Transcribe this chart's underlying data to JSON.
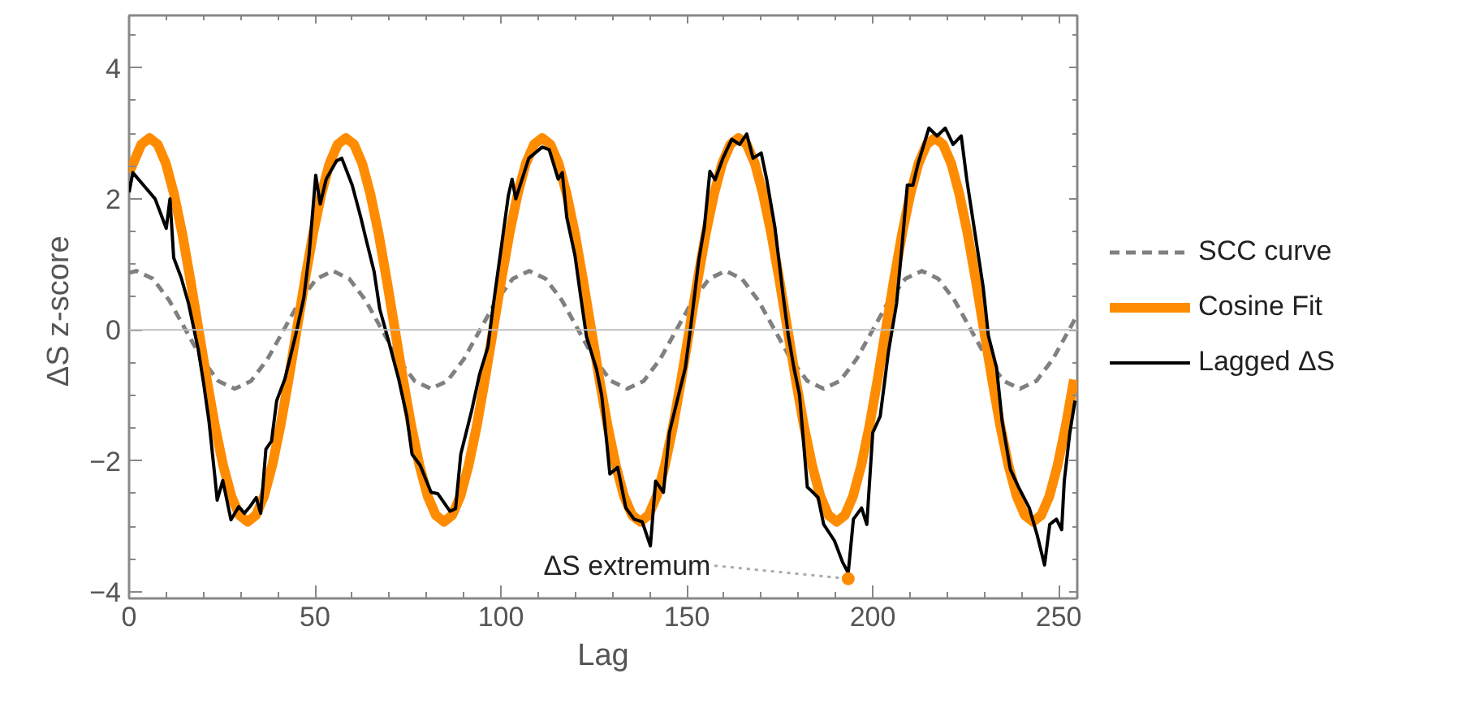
{
  "chart_data": {
    "type": "line",
    "xlabel": "Lag",
    "ylabel": "ΔS  z-score",
    "xlim": [
      0,
      255
    ],
    "ylim": [
      -4.1,
      4.8
    ],
    "xticks": [
      0,
      50,
      100,
      150,
      200,
      250
    ],
    "yticks": [
      -4,
      -2,
      0,
      2,
      4
    ],
    "grid": false,
    "legend": "right",
    "ref_lines": [
      {
        "axis": "y",
        "value": 0,
        "color": "#c0c0c0"
      }
    ],
    "annotations": [
      {
        "text": "ΔS extremum",
        "x": 193.4,
        "y": -3.8
      }
    ],
    "series": [
      {
        "name": "SCC curve",
        "color": "#808080",
        "line_style": "dashed",
        "x": [
          0,
          2,
          6.4,
          10.8,
          15.2,
          19.6,
          24,
          28.4,
          32.8,
          37.2,
          41.6,
          46,
          50.4,
          54.8,
          59.2,
          63.6,
          68,
          72.4,
          76.8,
          81.2,
          85.6,
          90,
          94.4,
          98.8,
          103.2,
          107.6,
          112,
          116.4,
          120.8,
          125.2,
          129.6,
          134,
          138.4,
          142.8,
          147.2,
          151.6,
          156,
          160.4,
          164.8,
          169.2,
          173.6,
          178,
          182.4,
          186.8,
          191.2,
          195.6,
          200,
          204.4,
          208.8,
          213.2,
          217.6,
          222,
          226.4,
          230.8,
          235.2,
          239.6,
          244,
          248.4,
          252.8,
          255
        ],
        "values": [
          0.87,
          0.9,
          0.78,
          0.45,
          0,
          -0.45,
          -0.78,
          -0.9,
          -0.78,
          -0.45,
          0,
          0.45,
          0.78,
          0.9,
          0.78,
          0.45,
          0,
          -0.45,
          -0.78,
          -0.9,
          -0.78,
          -0.45,
          0,
          0.45,
          0.78,
          0.9,
          0.78,
          0.45,
          0,
          -0.45,
          -0.78,
          -0.9,
          -0.78,
          -0.45,
          0,
          0.45,
          0.78,
          0.9,
          0.78,
          0.45,
          0,
          -0.45,
          -0.78,
          -0.9,
          -0.78,
          -0.45,
          0,
          0.45,
          0.78,
          0.9,
          0.78,
          0.45,
          0,
          -0.45,
          -0.78,
          -0.9,
          -0.78,
          -0.45,
          0,
          0.23
        ]
      },
      {
        "name": "Cosine Fit",
        "color": "#ff8c00",
        "line_style": "solid",
        "x": [
          0,
          1.1,
          3.3,
          5.5,
          7.7,
          9.9,
          12.1,
          14.3,
          16.5,
          18.7,
          20.9,
          23.1,
          25.3,
          27.5,
          29.7,
          31.9,
          34.1,
          36.3,
          38.5,
          40.7,
          42.9,
          45.1,
          47.3,
          49.5,
          51.7,
          53.9,
          56.1,
          58.3,
          60.5,
          62.7,
          64.9,
          67.1,
          69.3,
          71.5,
          73.7,
          75.9,
          78.1,
          80.3,
          82.5,
          84.7,
          86.9,
          89.1,
          91.3,
          93.5,
          95.7,
          97.9,
          100.1,
          102.3,
          104.5,
          106.7,
          108.9,
          111.1,
          113.3,
          115.5,
          117.7,
          119.9,
          122.1,
          124.3,
          126.5,
          128.7,
          130.9,
          133.1,
          135.3,
          137.5,
          139.7,
          141.9,
          144.1,
          146.3,
          148.5,
          150.7,
          152.9,
          155.1,
          157.3,
          159.5,
          161.7,
          163.9,
          166.1,
          168.3,
          170.5,
          172.7,
          174.9,
          177.1,
          179.3,
          181.5,
          183.7,
          185.9,
          188.1,
          190.3,
          192.5,
          194.7,
          196.9,
          199.1,
          201.3,
          203.5,
          205.7,
          207.9,
          210.1,
          212.3,
          214.5,
          216.7,
          218.9,
          221.1,
          223.3,
          225.5,
          227.7,
          229.9,
          232.1,
          234.3,
          236.5,
          238.7,
          240.9,
          243.1,
          245.3,
          247.5,
          249.7,
          251.9,
          254.1
        ],
        "values": [
          2.4,
          2.54,
          2.83,
          2.93,
          2.83,
          2.54,
          2.07,
          1.47,
          0.76,
          0,
          -0.76,
          -1.47,
          -2.07,
          -2.54,
          -2.83,
          -2.93,
          -2.83,
          -2.54,
          -2.07,
          -1.47,
          -0.76,
          0,
          0.76,
          1.47,
          2.07,
          2.54,
          2.83,
          2.93,
          2.83,
          2.54,
          2.07,
          1.47,
          0.76,
          0,
          -0.76,
          -1.47,
          -2.07,
          -2.54,
          -2.83,
          -2.93,
          -2.83,
          -2.54,
          -2.07,
          -1.47,
          -0.76,
          0,
          0.76,
          1.47,
          2.07,
          2.54,
          2.83,
          2.93,
          2.83,
          2.54,
          2.07,
          1.47,
          0.76,
          0,
          -0.76,
          -1.47,
          -2.07,
          -2.54,
          -2.83,
          -2.93,
          -2.83,
          -2.54,
          -2.07,
          -1.47,
          -0.76,
          0,
          0.76,
          1.47,
          2.07,
          2.54,
          2.83,
          2.93,
          2.83,
          2.54,
          2.07,
          1.47,
          0.76,
          0,
          -0.76,
          -1.47,
          -2.07,
          -2.54,
          -2.83,
          -2.93,
          -2.83,
          -2.54,
          -2.07,
          -1.47,
          -0.76,
          0,
          0.76,
          1.47,
          2.07,
          2.54,
          2.83,
          2.93,
          2.83,
          2.54,
          2.07,
          1.47,
          0.76,
          0,
          -0.76,
          -1.47,
          -2.07,
          -2.54,
          -2.83,
          -2.93,
          -2.83,
          -2.54,
          -2.07,
          -1.47,
          -0.76
        ]
      },
      {
        "name": "Lagged ΔS",
        "color": "#000000",
        "line_style": "solid",
        "x": [
          0,
          1,
          4,
          7,
          10,
          11,
          12,
          14,
          16,
          18.6,
          20,
          21.5,
          23,
          23.7,
          25.2,
          27.4,
          29.5,
          31,
          32.5,
          34.2,
          35.4,
          36.8,
          38.3,
          39.7,
          41.9,
          44.8,
          47,
          48.4,
          50.2,
          51.4,
          53,
          55.8,
          57.2,
          60,
          62.3,
          63.7,
          65.9,
          67.4,
          69.6,
          72.5,
          74.7,
          76.1,
          78.3,
          81.2,
          83,
          86.3,
          87.8,
          89.2,
          92.1,
          94.3,
          96.5,
          98,
          100.2,
          102,
          103,
          104,
          107.5,
          111.1,
          113,
          115.4,
          116.5,
          117.7,
          119.9,
          121.3,
          123,
          125.7,
          127.1,
          128.5,
          129.3,
          131.4,
          133.6,
          135.8,
          138,
          140.2,
          141.6,
          143.7,
          145.3,
          147.4,
          149.6,
          151.1,
          153.2,
          154.7,
          156.2,
          157.6,
          159.7,
          162.1,
          164.2,
          166.1,
          167.8,
          170,
          171.5,
          173.7,
          175.8,
          177.3,
          178.8,
          180.3,
          182.4,
          183.9,
          185.3,
          186.8,
          189.7,
          191.9,
          193.4,
          194.8,
          197,
          198.4,
          200,
          202,
          204.2,
          206.4,
          207.9,
          209.3,
          210.8,
          212.2,
          215.1,
          217.3,
          219.5,
          221.6,
          223.8,
          225.3,
          227.5,
          229.7,
          231.1,
          233.3,
          234.8,
          237,
          239.2,
          242.1,
          244.2,
          246.2,
          247.6,
          249.4,
          250.8,
          251.5,
          253,
          254.4
        ],
        "values": [
          2.1,
          2.4,
          2.2,
          2.0,
          1.55,
          2.0,
          1.1,
          0.8,
          0.4,
          -0.3,
          -0.8,
          -1.4,
          -2.2,
          -2.6,
          -2.3,
          -2.9,
          -2.7,
          -2.8,
          -2.7,
          -2.56,
          -2.8,
          -1.82,
          -1.7,
          -1.08,
          -0.75,
          -0.08,
          0.49,
          1.14,
          2.36,
          1.92,
          2.3,
          2.58,
          2.62,
          2.21,
          1.72,
          1.39,
          0.89,
          0.32,
          -0.13,
          -0.75,
          -1.32,
          -1.9,
          -2.07,
          -2.48,
          -2.5,
          -2.77,
          -2.73,
          -1.9,
          -1.24,
          -0.67,
          -0.26,
          0.4,
          1.3,
          2.05,
          2.3,
          2.0,
          2.62,
          2.79,
          2.75,
          2.3,
          2.4,
          1.72,
          1.14,
          0.57,
          -0.1,
          -0.6,
          -1.0,
          -1.74,
          -2.2,
          -2.1,
          -2.72,
          -2.89,
          -2.93,
          -3.3,
          -2.31,
          -2.48,
          -1.57,
          -1.08,
          -0.58,
          0.07,
          1.06,
          1.56,
          2.42,
          2.29,
          2.62,
          2.91,
          2.83,
          2.99,
          2.62,
          2.7,
          2.29,
          1.56,
          0.57,
          -0.09,
          -0.58,
          -0.99,
          -2.4,
          -2.48,
          -2.56,
          -2.97,
          -3.22,
          -3.55,
          -3.71,
          -2.89,
          -2.72,
          -2.97,
          -1.57,
          -1.32,
          -0.34,
          0.4,
          1.3,
          2.21,
          2.21,
          2.54,
          3.08,
          2.96,
          3.08,
          2.83,
          2.96,
          2.29,
          1.47,
          0.65,
          -0.09,
          -0.58,
          -1.4,
          -2.13,
          -2.4,
          -2.72,
          -3.13,
          -3.59,
          -2.97,
          -2.89,
          -3.05,
          -2.31,
          -1.57,
          -1.08
        ]
      }
    ]
  }
}
